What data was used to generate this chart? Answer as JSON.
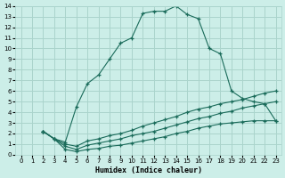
{
  "xlabel": "Humidex (Indice chaleur)",
  "xlim": [
    -0.5,
    23.5
  ],
  "ylim": [
    0,
    14
  ],
  "xticks": [
    0,
    1,
    2,
    3,
    4,
    5,
    6,
    7,
    8,
    9,
    10,
    11,
    12,
    13,
    14,
    15,
    16,
    17,
    18,
    19,
    20,
    21,
    22,
    23
  ],
  "yticks": [
    0,
    1,
    2,
    3,
    4,
    5,
    6,
    7,
    8,
    9,
    10,
    11,
    12,
    13,
    14
  ],
  "bg_color": "#cceee8",
  "grid_color": "#aad4cc",
  "line_color": "#1a6b5a",
  "curve_main_x": [
    2,
    3,
    4,
    5,
    6,
    7,
    8,
    9,
    10,
    11,
    12,
    13,
    14,
    15,
    16,
    17,
    18,
    19,
    20,
    21,
    22,
    23
  ],
  "curve_main_y": [
    2.2,
    1.5,
    1.2,
    4.5,
    6.7,
    7.5,
    9.0,
    10.5,
    11.0,
    13.3,
    13.5,
    13.5,
    14.0,
    13.2,
    12.8,
    10.0,
    9.5,
    6.0,
    5.3,
    5.0,
    4.8,
    3.2
  ],
  "curve2_x": [
    2,
    3,
    4,
    5,
    6,
    7,
    8,
    9,
    10,
    11,
    12,
    13,
    14,
    15,
    16,
    17,
    18,
    19,
    20,
    21,
    22,
    23
  ],
  "curve2_y": [
    2.2,
    1.5,
    1.0,
    0.8,
    1.3,
    1.5,
    1.8,
    2.0,
    2.3,
    2.7,
    3.0,
    3.3,
    3.6,
    4.0,
    4.3,
    4.5,
    4.8,
    5.0,
    5.2,
    5.5,
    5.8,
    6.0
  ],
  "curve3_x": [
    2,
    3,
    4,
    5,
    6,
    7,
    8,
    9,
    10,
    11,
    12,
    13,
    14,
    15,
    16,
    17,
    18,
    19,
    20,
    21,
    22,
    23
  ],
  "curve3_y": [
    2.2,
    1.5,
    0.8,
    0.5,
    0.9,
    1.1,
    1.3,
    1.5,
    1.8,
    2.0,
    2.2,
    2.5,
    2.8,
    3.1,
    3.4,
    3.6,
    3.9,
    4.1,
    4.4,
    4.6,
    4.8,
    5.0
  ],
  "curve4_x": [
    2,
    3,
    4,
    5,
    6,
    7,
    8,
    9,
    10,
    11,
    12,
    13,
    14,
    15,
    16,
    17,
    18,
    19,
    20,
    21,
    22,
    23
  ],
  "curve4_y": [
    2.2,
    1.5,
    0.5,
    0.3,
    0.5,
    0.6,
    0.8,
    0.9,
    1.1,
    1.3,
    1.5,
    1.7,
    2.0,
    2.2,
    2.5,
    2.7,
    2.9,
    3.0,
    3.1,
    3.2,
    3.2,
    3.2
  ]
}
